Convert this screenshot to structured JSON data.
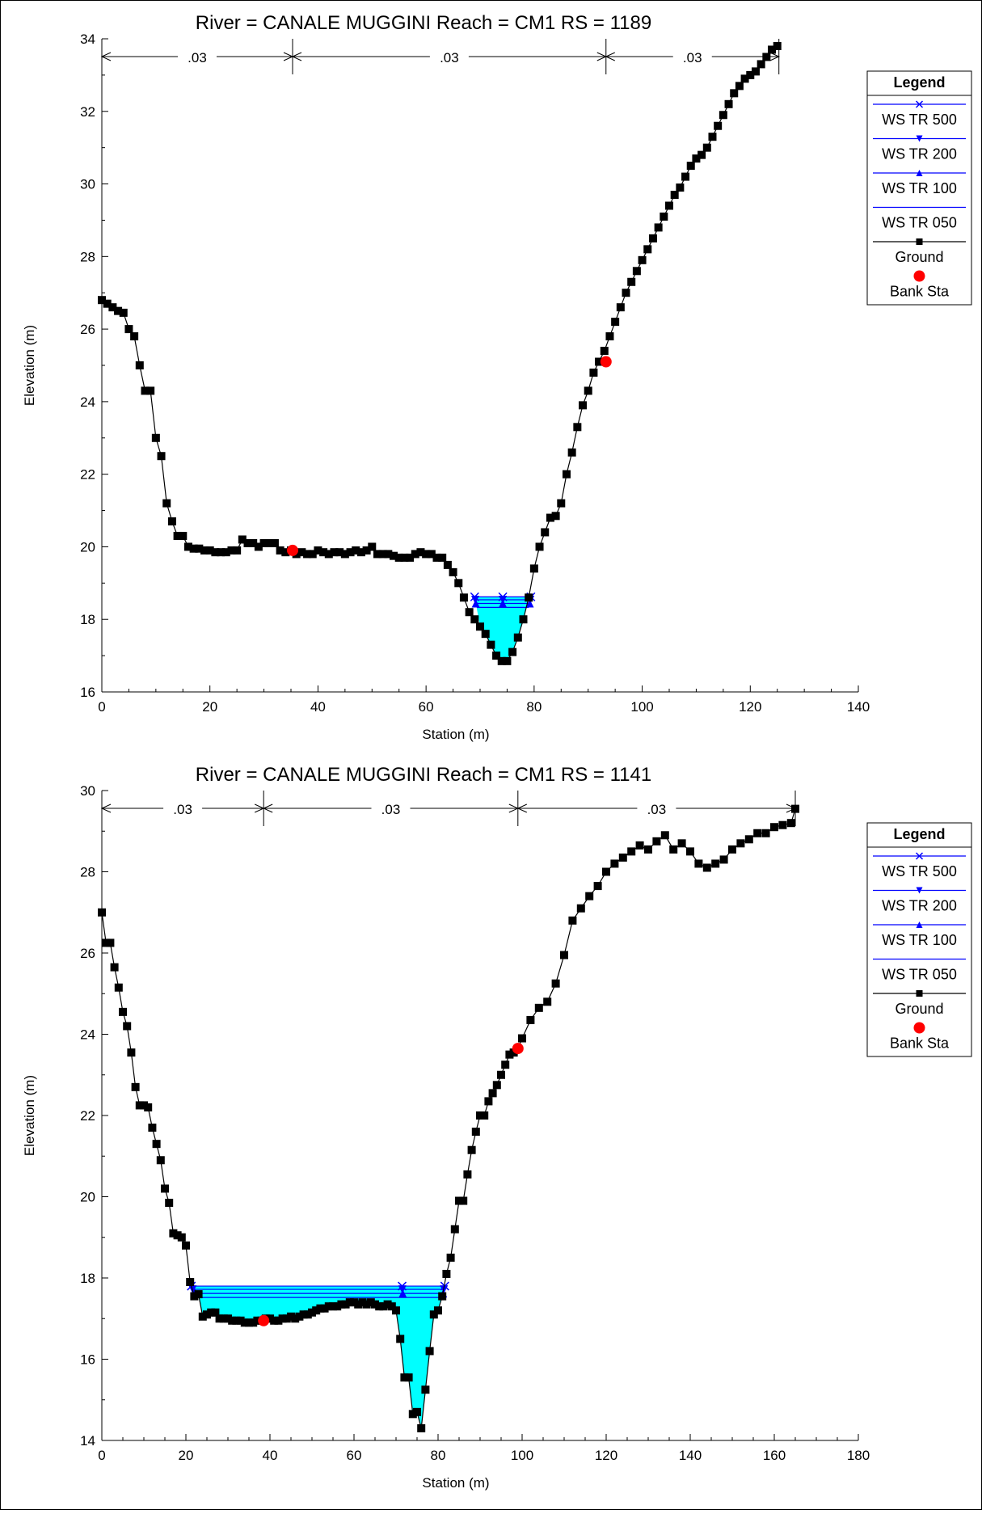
{
  "chart_data": [
    {
      "type": "line",
      "title": "River = CANALE MUGGINI   Reach = CM1     RS = 1189",
      "xlabel": "Station (m)",
      "ylabel": "Elevation (m)",
      "xlim": [
        0,
        140
      ],
      "ylim": [
        16,
        34
      ],
      "xticks": [
        0,
        20,
        40,
        60,
        80,
        100,
        120,
        140
      ],
      "yticks": [
        16,
        18,
        20,
        22,
        24,
        26,
        28,
        30,
        32,
        34
      ],
      "grid": false,
      "legend_position": "right",
      "manning": {
        "breaks": [
          0,
          35.3,
          93.3,
          125.3
        ],
        "labels": [
          ".03",
          ".03",
          ".03"
        ]
      },
      "bank_stations": [
        [
          35.3,
          19.9
        ],
        [
          93.3,
          25.1
        ]
      ],
      "water_surfaces": [
        {
          "name": "WS TR 500",
          "elevation": 18.62,
          "x_left": 69.0,
          "x_right": 79.4,
          "marker": "x"
        },
        {
          "name": "WS TR 200",
          "elevation": 18.54,
          "x_left": 69.1,
          "x_right": 79.3,
          "marker": "triangle-down"
        },
        {
          "name": "WS TR 100",
          "elevation": 18.44,
          "x_left": 69.2,
          "x_right": 79.2,
          "marker": "triangle-up"
        },
        {
          "name": "WS TR 050",
          "elevation": 18.33,
          "x_left": 69.4,
          "x_right": 79.0,
          "marker": "none"
        }
      ],
      "ground": {
        "name": "Ground",
        "x": [
          0,
          1,
          2,
          3,
          4,
          5,
          6,
          7,
          8,
          9,
          10,
          11,
          12,
          13,
          14,
          15,
          16,
          17,
          18,
          19,
          20,
          21,
          22,
          23,
          24,
          25,
          26,
          27,
          28,
          29,
          30,
          31,
          32,
          33,
          34,
          35,
          36,
          37,
          38,
          39,
          40,
          41,
          42,
          43,
          44,
          45,
          46,
          47,
          48,
          49,
          50,
          51,
          52,
          53,
          54,
          55,
          56,
          57,
          58,
          59,
          60,
          61,
          62,
          63,
          64,
          65,
          66,
          67,
          68,
          69,
          70,
          71,
          72,
          73,
          74,
          75,
          76,
          77,
          78,
          79,
          80,
          81,
          82,
          83,
          84,
          85,
          86,
          87,
          88,
          89,
          90,
          91,
          92,
          93,
          94,
          95,
          96,
          97,
          98,
          99,
          100,
          101,
          102,
          103,
          104,
          105,
          106,
          107,
          108,
          109,
          110,
          111,
          112,
          113,
          114,
          115,
          116,
          117,
          118,
          119,
          120,
          121,
          122,
          123,
          124,
          125
        ],
        "y": [
          26.8,
          26.7,
          26.6,
          26.5,
          26.45,
          26.0,
          25.8,
          25.0,
          24.3,
          24.3,
          23.0,
          22.5,
          21.2,
          20.7,
          20.3,
          20.3,
          20.0,
          19.95,
          19.95,
          19.9,
          19.9,
          19.85,
          19.85,
          19.85,
          19.9,
          19.9,
          20.2,
          20.1,
          20.1,
          20.0,
          20.1,
          20.1,
          20.1,
          19.9,
          19.85,
          19.9,
          19.8,
          19.85,
          19.8,
          19.8,
          19.9,
          19.85,
          19.8,
          19.85,
          19.85,
          19.8,
          19.85,
          19.9,
          19.85,
          19.9,
          20.0,
          19.8,
          19.8,
          19.8,
          19.75,
          19.7,
          19.7,
          19.7,
          19.8,
          19.85,
          19.8,
          19.8,
          19.7,
          19.7,
          19.5,
          19.3,
          19.0,
          18.6,
          18.2,
          18.0,
          17.8,
          17.6,
          17.3,
          17.0,
          16.85,
          16.85,
          17.1,
          17.5,
          18.0,
          18.6,
          19.4,
          20.0,
          20.4,
          20.8,
          20.85,
          21.2,
          22.0,
          22.6,
          23.3,
          23.9,
          24.3,
          24.8,
          25.1,
          25.4,
          25.8,
          26.2,
          26.6,
          27.0,
          27.3,
          27.6,
          27.9,
          28.2,
          28.5,
          28.8,
          29.1,
          29.4,
          29.7,
          29.9,
          30.2,
          30.5,
          30.7,
          30.8,
          31.0,
          31.3,
          31.6,
          31.9,
          32.2,
          32.5,
          32.7,
          32.9,
          33.0,
          33.1,
          33.3,
          33.5,
          33.7,
          33.8
        ]
      }
    },
    {
      "type": "line",
      "title": "River = CANALE MUGGINI   Reach = CM1     RS = 1141",
      "xlabel": "Station (m)",
      "ylabel": "Elevation (m)",
      "xlim": [
        0,
        180
      ],
      "ylim": [
        14,
        30
      ],
      "xticks": [
        0,
        20,
        40,
        60,
        80,
        100,
        120,
        140,
        160,
        180
      ],
      "yticks": [
        14,
        16,
        18,
        20,
        22,
        24,
        26,
        28,
        30
      ],
      "grid": false,
      "legend_position": "right",
      "manning": {
        "breaks": [
          0,
          38.5,
          99.0,
          165.0
        ],
        "labels": [
          ".03",
          ".03",
          ".03"
        ]
      },
      "bank_stations": [
        [
          38.5,
          16.95
        ],
        [
          99.0,
          23.65
        ]
      ],
      "water_surfaces": [
        {
          "name": "WS TR 500",
          "elevation": 17.8,
          "x_left": 21.3,
          "x_right": 81.6,
          "marker": "x"
        },
        {
          "name": "WS TR 200",
          "elevation": 17.72,
          "x_left": 21.6,
          "x_right": 81.4,
          "marker": "triangle-down"
        },
        {
          "name": "WS TR 100",
          "elevation": 17.62,
          "x_left": 22.0,
          "x_right": 81.2,
          "marker": "triangle-up"
        },
        {
          "name": "WS TR 050",
          "elevation": 17.52,
          "x_left": 22.4,
          "x_right": 81.0,
          "marker": "none"
        }
      ],
      "ground": {
        "name": "Ground",
        "x": [
          0,
          1,
          2,
          3,
          4,
          5,
          6,
          7,
          8,
          9,
          10,
          11,
          12,
          13,
          14,
          15,
          16,
          17,
          18,
          19,
          20,
          21,
          22,
          23,
          24,
          25,
          26,
          27,
          28,
          29,
          30,
          31,
          32,
          33,
          34,
          35,
          36,
          37,
          38,
          39,
          40,
          41,
          42,
          43,
          44,
          45,
          46,
          47,
          48,
          49,
          50,
          51,
          52,
          53,
          54,
          55,
          56,
          57,
          58,
          59,
          60,
          61,
          62,
          63,
          64,
          65,
          66,
          67,
          68,
          69,
          70,
          71,
          72,
          73,
          74,
          75,
          76,
          77,
          78,
          79,
          80,
          81,
          82,
          83,
          84,
          85,
          86,
          87,
          88,
          89,
          90,
          91,
          92,
          93,
          94,
          95,
          96,
          97,
          98,
          99,
          100,
          102,
          104,
          106,
          108,
          110,
          112,
          114,
          116,
          118,
          120,
          122,
          124,
          126,
          128,
          130,
          132,
          134,
          136,
          138,
          140,
          142,
          144,
          146,
          148,
          150,
          152,
          154,
          156,
          158,
          160,
          162,
          164,
          165
        ],
        "y": [
          27.0,
          26.25,
          26.25,
          25.65,
          25.15,
          24.55,
          24.2,
          23.55,
          22.7,
          22.25,
          22.25,
          22.2,
          21.7,
          21.3,
          20.9,
          20.2,
          19.85,
          19.1,
          19.05,
          19.0,
          18.8,
          17.9,
          17.55,
          17.6,
          17.05,
          17.1,
          17.15,
          17.15,
          17.0,
          17.0,
          17.0,
          16.95,
          16.95,
          16.95,
          16.9,
          16.9,
          16.9,
          16.95,
          16.95,
          17.0,
          17.0,
          16.95,
          16.95,
          17.0,
          17.0,
          17.05,
          17.0,
          17.05,
          17.1,
          17.1,
          17.15,
          17.2,
          17.25,
          17.25,
          17.3,
          17.3,
          17.3,
          17.35,
          17.35,
          17.4,
          17.4,
          17.35,
          17.4,
          17.35,
          17.4,
          17.35,
          17.3,
          17.3,
          17.35,
          17.3,
          17.2,
          16.5,
          15.55,
          15.55,
          14.65,
          14.7,
          14.3,
          15.25,
          16.2,
          17.1,
          17.2,
          17.55,
          18.1,
          18.5,
          19.2,
          19.9,
          19.9,
          20.55,
          21.15,
          21.6,
          22.0,
          22.0,
          22.35,
          22.55,
          22.75,
          23.0,
          23.25,
          23.5,
          23.55,
          23.65,
          23.9,
          24.35,
          24.65,
          24.8,
          25.25,
          25.95,
          26.8,
          27.1,
          27.4,
          27.65,
          28.0,
          28.2,
          28.35,
          28.5,
          28.65,
          28.55,
          28.75,
          28.9,
          28.55,
          28.7,
          28.5,
          28.2,
          28.1,
          28.2,
          28.3,
          28.55,
          28.7,
          28.8,
          28.95,
          28.95,
          29.1,
          29.15,
          29.2,
          29.55
        ]
      }
    }
  ],
  "legend": {
    "title": "Legend",
    "items": [
      "WS TR 500",
      "WS TR 200",
      "WS TR 100",
      "WS TR 050",
      "Ground",
      "Bank Sta"
    ]
  },
  "colors": {
    "water_fill": "#00ffff",
    "water_line": "#0000ff",
    "ground": "#000000",
    "bank_station": "#ff0000"
  }
}
